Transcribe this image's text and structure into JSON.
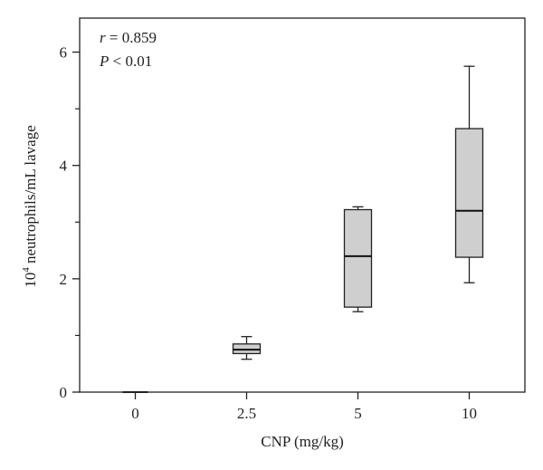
{
  "chart_data": {
    "type": "box",
    "xlabel": "CNP (mg/kg)",
    "ylabel_base": "10",
    "ylabel_exp": "4",
    "ylabel_rest": " neutrophils/mL lavage",
    "categories": [
      "0",
      "2.5",
      "5",
      "10"
    ],
    "boxes": [
      {
        "category": "0",
        "min": 0.0,
        "q1": 0.0,
        "median": 0.0,
        "q3": 0.0,
        "max": 0.0
      },
      {
        "category": "2.5",
        "min": 0.58,
        "q1": 0.68,
        "median": 0.75,
        "q3": 0.85,
        "max": 0.98
      },
      {
        "category": "5",
        "min": 1.42,
        "q1": 1.5,
        "median": 2.4,
        "q3": 3.22,
        "max": 3.27
      },
      {
        "category": "10",
        "min": 1.93,
        "q1": 2.38,
        "median": 3.2,
        "q3": 4.65,
        "max": 5.75
      }
    ],
    "ylim": [
      0,
      6.6
    ],
    "yticks": [
      0,
      2,
      4,
      6
    ],
    "minor_yticks": [
      1,
      3,
      5
    ],
    "grid": false,
    "box_fill": "#cfcfcf",
    "annotations": {
      "r_symbol": "r",
      "r_value": " = 0.859",
      "p_symbol": "P",
      "p_value": " < 0.01"
    }
  }
}
